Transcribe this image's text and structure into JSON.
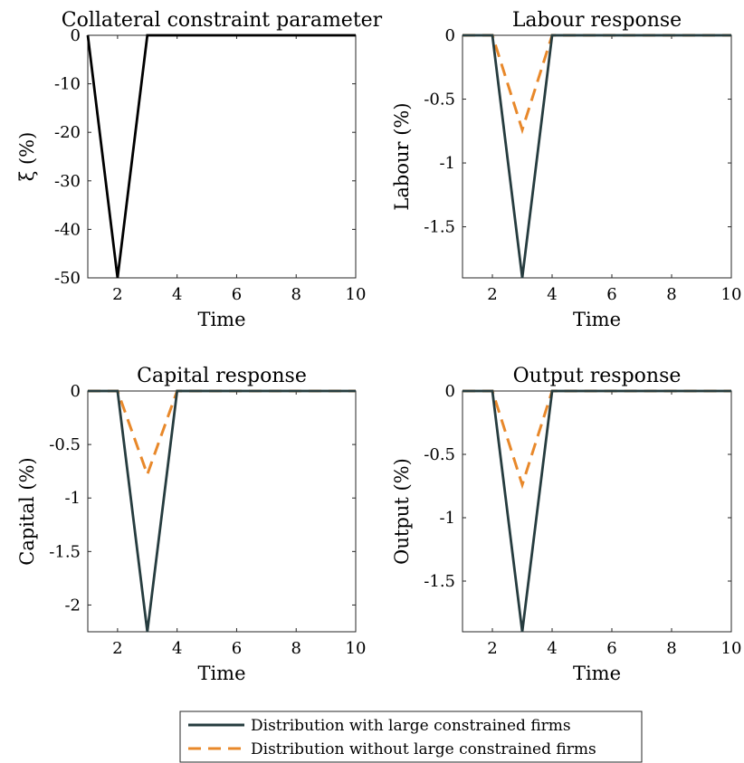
{
  "colors": {
    "with_large": "#263c3f",
    "without_large": "#e8882a",
    "xi_line": "#000000"
  },
  "legend": {
    "items": [
      {
        "label": "Distribution with large constrained firms",
        "style": "solid",
        "color": "#263c3f"
      },
      {
        "label": "Distribution without large constrained firms",
        "style": "dashed",
        "color": "#e8882a"
      }
    ]
  },
  "chart_data": [
    {
      "type": "line",
      "title": "Collateral constraint parameter",
      "xlabel": "Time",
      "ylabel": "ξ (%)",
      "xlim": [
        1,
        10
      ],
      "ylim": [
        -50,
        0
      ],
      "xticks": [
        2,
        4,
        6,
        8,
        10
      ],
      "xtick_labels": [
        "2",
        "4",
        "6",
        "8",
        "10"
      ],
      "yticks": [
        0,
        -10,
        -20,
        -30,
        -40,
        -50
      ],
      "ytick_labels": [
        "0",
        "-10",
        "-20",
        "-30",
        "-40",
        "-50"
      ],
      "x": [
        1,
        2,
        3,
        4,
        5,
        6,
        7,
        8,
        9,
        10
      ],
      "series": [
        {
          "values": [
            0,
            -50,
            0,
            0,
            0,
            0,
            0,
            0,
            0,
            0
          ],
          "style": "solid",
          "color": "#000000"
        }
      ]
    },
    {
      "type": "line",
      "title": "Labour response",
      "xlabel": "Time",
      "ylabel": "Labour (%)",
      "xlim": [
        1,
        10
      ],
      "ylim": [
        -1.9,
        0
      ],
      "xticks": [
        2,
        4,
        6,
        8,
        10
      ],
      "xtick_labels": [
        "2",
        "4",
        "6",
        "8",
        "10"
      ],
      "yticks": [
        0,
        -0.5,
        -1,
        -1.5
      ],
      "ytick_labels": [
        "0",
        "-0.5",
        "-1",
        "-1.5"
      ],
      "x": [
        1,
        2,
        3,
        4,
        5,
        6,
        7,
        8,
        9,
        10
      ],
      "series": [
        {
          "name": "Distribution with large constrained firms",
          "values": [
            0,
            0,
            -1.9,
            0,
            0,
            0,
            0,
            0,
            0,
            0
          ],
          "style": "solid",
          "color": "#263c3f"
        },
        {
          "name": "Distribution without large constrained firms",
          "values": [
            0,
            0,
            -0.74,
            0,
            0,
            0,
            0,
            0,
            0,
            0
          ],
          "style": "dashed",
          "color": "#e8882a"
        }
      ]
    },
    {
      "type": "line",
      "title": "Capital response",
      "xlabel": "Time",
      "ylabel": "Capital (%)",
      "xlim": [
        1,
        10
      ],
      "ylim": [
        -2.25,
        0
      ],
      "xticks": [
        2,
        4,
        6,
        8,
        10
      ],
      "xtick_labels": [
        "2",
        "4",
        "6",
        "8",
        "10"
      ],
      "yticks": [
        0,
        -0.5,
        -1,
        -1.5,
        -2
      ],
      "ytick_labels": [
        "0",
        "-0.5",
        "-1",
        "-1.5",
        "-2"
      ],
      "x": [
        1,
        2,
        3,
        4,
        5,
        6,
        7,
        8,
        9,
        10
      ],
      "series": [
        {
          "name": "Distribution with large constrained firms",
          "values": [
            0,
            0,
            -2.25,
            0,
            0,
            0,
            0,
            0,
            0,
            0
          ],
          "style": "solid",
          "color": "#263c3f"
        },
        {
          "name": "Distribution without large constrained firms",
          "values": [
            0,
            0,
            -0.78,
            0,
            0,
            0,
            0,
            0,
            0,
            0
          ],
          "style": "dashed",
          "color": "#e8882a"
        }
      ]
    },
    {
      "type": "line",
      "title": "Output response",
      "xlabel": "Time",
      "ylabel": "Output (%)",
      "xlim": [
        1,
        10
      ],
      "ylim": [
        -1.9,
        0
      ],
      "xticks": [
        2,
        4,
        6,
        8,
        10
      ],
      "xtick_labels": [
        "2",
        "4",
        "6",
        "8",
        "10"
      ],
      "yticks": [
        0,
        -0.5,
        -1,
        -1.5
      ],
      "ytick_labels": [
        "0",
        "-0.5",
        "-1",
        "-1.5"
      ],
      "x": [
        1,
        2,
        3,
        4,
        5,
        6,
        7,
        8,
        9,
        10
      ],
      "series": [
        {
          "name": "Distribution with large constrained firms",
          "values": [
            0,
            0,
            -1.9,
            0,
            0,
            0,
            0,
            0,
            0,
            0
          ],
          "style": "solid",
          "color": "#263c3f"
        },
        {
          "name": "Distribution without large constrained firms",
          "values": [
            0,
            0,
            -0.74,
            0,
            0,
            0,
            0,
            0,
            0,
            0
          ],
          "style": "dashed",
          "color": "#e8882a"
        }
      ]
    }
  ]
}
